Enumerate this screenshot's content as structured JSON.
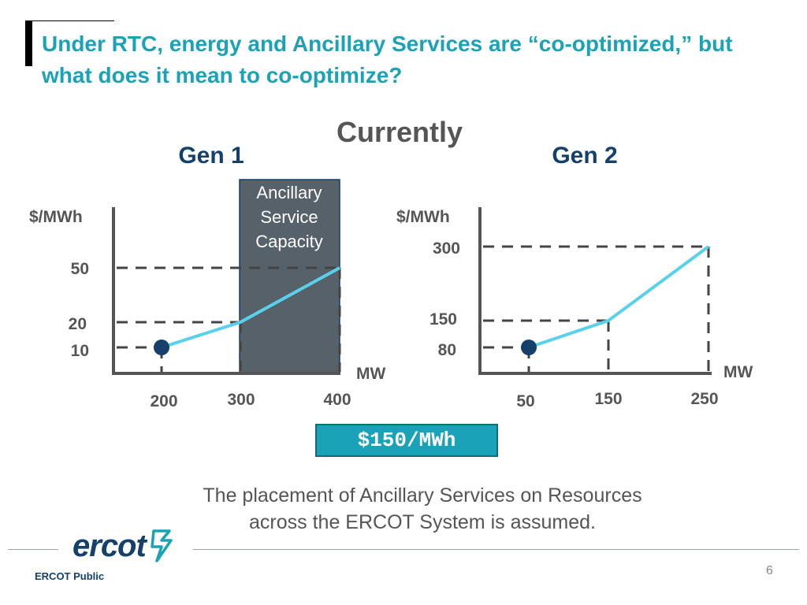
{
  "slide": {
    "title": "Under RTC, energy and Ancillary Services are “co-optimized,” but what does it mean to co-optimize?",
    "subtitle": "Currently",
    "price_badge": "$150/MWh",
    "caption_line1": "The placement of Ancillary Services on Resources",
    "caption_line2": "across the ERCOT System is assumed.",
    "logo_text": "ercot",
    "footer_label": "ERCOT Public",
    "page_number": "6",
    "colors": {
      "accent": "#1aa3b8",
      "navy": "#14406b",
      "curve": "#5ad1ec",
      "shade": "#566169"
    }
  },
  "chart_data": [
    {
      "type": "line",
      "title": "Gen 1",
      "ylabel": "$/MWh",
      "xlabel": "MW",
      "series": [
        {
          "x": [
            200,
            300,
            400
          ],
          "y": [
            10,
            20,
            50
          ]
        }
      ],
      "x_ticks": [
        "200",
        "300",
        "400"
      ],
      "y_ticks": [
        "10",
        "20",
        "50"
      ],
      "operating_point": {
        "x": 200,
        "y": 10
      },
      "shaded_region": {
        "label": "Ancillary Service Capacity",
        "x_range": [
          300,
          400
        ]
      }
    },
    {
      "type": "line",
      "title": "Gen 2",
      "ylabel": "$/MWh",
      "xlabel": "MW",
      "series": [
        {
          "x": [
            50,
            150,
            250
          ],
          "y": [
            80,
            150,
            300
          ]
        }
      ],
      "x_ticks": [
        "50",
        "150",
        "250"
      ],
      "y_ticks": [
        "80",
        "150",
        "300"
      ],
      "operating_point": {
        "x": 50,
        "y": 80
      }
    }
  ]
}
